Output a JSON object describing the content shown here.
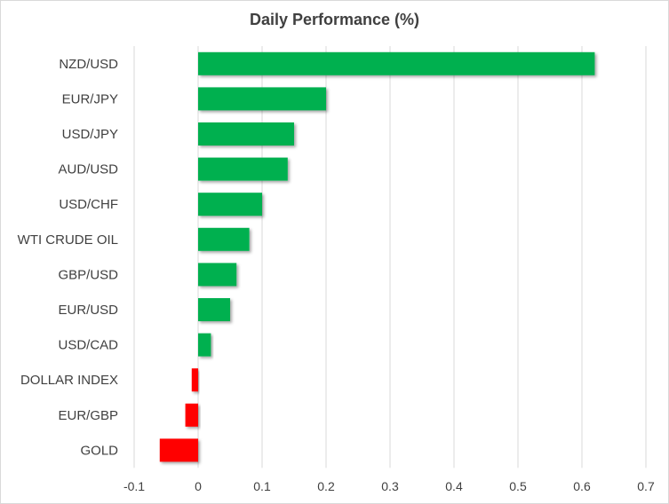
{
  "chart_data": {
    "type": "bar",
    "orientation": "horizontal",
    "title": "Daily Performance  (%)",
    "categories": [
      "NZD/USD",
      "EUR/JPY",
      "USD/JPY",
      "AUD/USD",
      "USD/CHF",
      "WTI CRUDE OIL",
      "GBP/USD",
      "EUR/USD",
      "USD/CAD",
      "DOLLAR INDEX",
      "EUR/GBP",
      "GOLD"
    ],
    "values": [
      0.62,
      0.2,
      0.15,
      0.14,
      0.1,
      0.08,
      0.06,
      0.05,
      0.02,
      -0.01,
      -0.02,
      -0.06
    ],
    "xlim": [
      -0.1,
      0.7
    ],
    "xticks": [
      "-0.1",
      "0",
      "0.1",
      "0.2",
      "0.3",
      "0.4",
      "0.5",
      "0.6",
      "0.7"
    ],
    "grid": "vertical",
    "colors": {
      "positive": "#00b050",
      "negative": "#ff0000",
      "grid": "#d9d9d9",
      "text": "#404040"
    }
  }
}
